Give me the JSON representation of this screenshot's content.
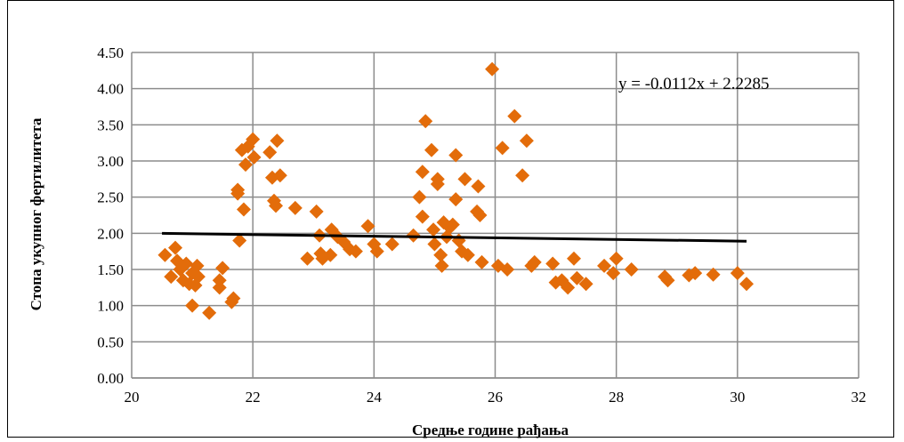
{
  "chart_data": {
    "type": "scatter",
    "title": "",
    "xlabel": "Средње године рађања",
    "ylabel": "Стопа укупног фертилитета",
    "xlim": [
      20,
      32
    ],
    "ylim": [
      0,
      4.5
    ],
    "x_ticks": [
      20,
      22,
      24,
      26,
      28,
      30,
      32
    ],
    "x_tick_labels": [
      "20",
      "22",
      "24",
      "26",
      "28",
      "30",
      "32"
    ],
    "y_ticks": [
      0,
      0.5,
      1,
      1.5,
      2,
      2.5,
      3,
      3.5,
      4,
      4.5
    ],
    "y_tick_labels": [
      "0.00",
      "0.50",
      "1.00",
      "1.50",
      "2.00",
      "2.50",
      "3.00",
      "3.50",
      "4.00",
      "4.50"
    ],
    "grid": true,
    "marker_color": "#E36C0A",
    "trendline": {
      "slope": -0.0112,
      "intercept": 2.2285,
      "x_range": [
        20.5,
        30.15
      ],
      "equation_text": "y = -0.0112x + 2.2285",
      "color": "#000000"
    },
    "points": [
      [
        20.55,
        1.7
      ],
      [
        20.65,
        1.4
      ],
      [
        20.72,
        1.8
      ],
      [
        20.75,
        1.62
      ],
      [
        20.8,
        1.5
      ],
      [
        20.85,
        1.35
      ],
      [
        20.9,
        1.58
      ],
      [
        20.95,
        1.3
      ],
      [
        21.0,
        1.45
      ],
      [
        21.0,
        1.0
      ],
      [
        21.05,
        1.28
      ],
      [
        21.08,
        1.55
      ],
      [
        21.1,
        1.4
      ],
      [
        21.28,
        0.9
      ],
      [
        21.45,
        1.35
      ],
      [
        21.5,
        1.52
      ],
      [
        21.45,
        1.25
      ],
      [
        21.65,
        1.05
      ],
      [
        21.68,
        1.1
      ],
      [
        21.75,
        2.6
      ],
      [
        21.75,
        2.55
      ],
      [
        21.78,
        1.9
      ],
      [
        21.82,
        3.15
      ],
      [
        21.85,
        2.33
      ],
      [
        21.88,
        2.95
      ],
      [
        21.92,
        3.2
      ],
      [
        22.0,
        3.3
      ],
      [
        22.02,
        3.05
      ],
      [
        22.28,
        3.12
      ],
      [
        22.32,
        2.77
      ],
      [
        22.35,
        2.45
      ],
      [
        22.38,
        2.38
      ],
      [
        22.4,
        3.28
      ],
      [
        22.45,
        2.8
      ],
      [
        22.7,
        2.35
      ],
      [
        22.9,
        1.65
      ],
      [
        23.05,
        2.3
      ],
      [
        23.1,
        1.97
      ],
      [
        23.12,
        1.72
      ],
      [
        23.15,
        1.65
      ],
      [
        23.28,
        1.7
      ],
      [
        23.3,
        2.05
      ],
      [
        23.4,
        1.95
      ],
      [
        23.5,
        1.88
      ],
      [
        23.6,
        1.78
      ],
      [
        23.7,
        1.75
      ],
      [
        23.9,
        2.1
      ],
      [
        24.0,
        1.85
      ],
      [
        24.05,
        1.75
      ],
      [
        24.3,
        1.85
      ],
      [
        24.65,
        1.97
      ],
      [
        24.75,
        2.5
      ],
      [
        24.8,
        2.23
      ],
      [
        24.8,
        2.85
      ],
      [
        24.85,
        3.55
      ],
      [
        24.95,
        3.15
      ],
      [
        24.98,
        2.05
      ],
      [
        25.0,
        1.85
      ],
      [
        25.05,
        2.75
      ],
      [
        25.05,
        2.68
      ],
      [
        25.1,
        1.7
      ],
      [
        25.12,
        1.55
      ],
      [
        25.15,
        2.15
      ],
      [
        25.2,
        1.95
      ],
      [
        25.25,
        2.08
      ],
      [
        25.3,
        2.12
      ],
      [
        25.35,
        3.08
      ],
      [
        25.35,
        2.47
      ],
      [
        25.4,
        1.9
      ],
      [
        25.45,
        1.75
      ],
      [
        25.5,
        2.75
      ],
      [
        25.55,
        1.7
      ],
      [
        25.7,
        2.3
      ],
      [
        25.72,
        2.65
      ],
      [
        25.75,
        2.25
      ],
      [
        25.78,
        1.6
      ],
      [
        25.95,
        4.27
      ],
      [
        26.05,
        1.55
      ],
      [
        26.12,
        3.18
      ],
      [
        26.2,
        1.5
      ],
      [
        26.32,
        3.62
      ],
      [
        26.45,
        2.8
      ],
      [
        26.52,
        3.28
      ],
      [
        26.6,
        1.55
      ],
      [
        26.65,
        1.6
      ],
      [
        26.95,
        1.58
      ],
      [
        27.0,
        1.32
      ],
      [
        27.1,
        1.35
      ],
      [
        27.2,
        1.25
      ],
      [
        27.3,
        1.65
      ],
      [
        27.35,
        1.38
      ],
      [
        27.5,
        1.3
      ],
      [
        27.8,
        1.55
      ],
      [
        27.95,
        1.45
      ],
      [
        28.0,
        1.65
      ],
      [
        28.25,
        1.5
      ],
      [
        28.8,
        1.4
      ],
      [
        28.85,
        1.35
      ],
      [
        29.2,
        1.42
      ],
      [
        29.3,
        1.45
      ],
      [
        29.6,
        1.43
      ],
      [
        30.0,
        1.45
      ],
      [
        30.15,
        1.3
      ]
    ]
  }
}
